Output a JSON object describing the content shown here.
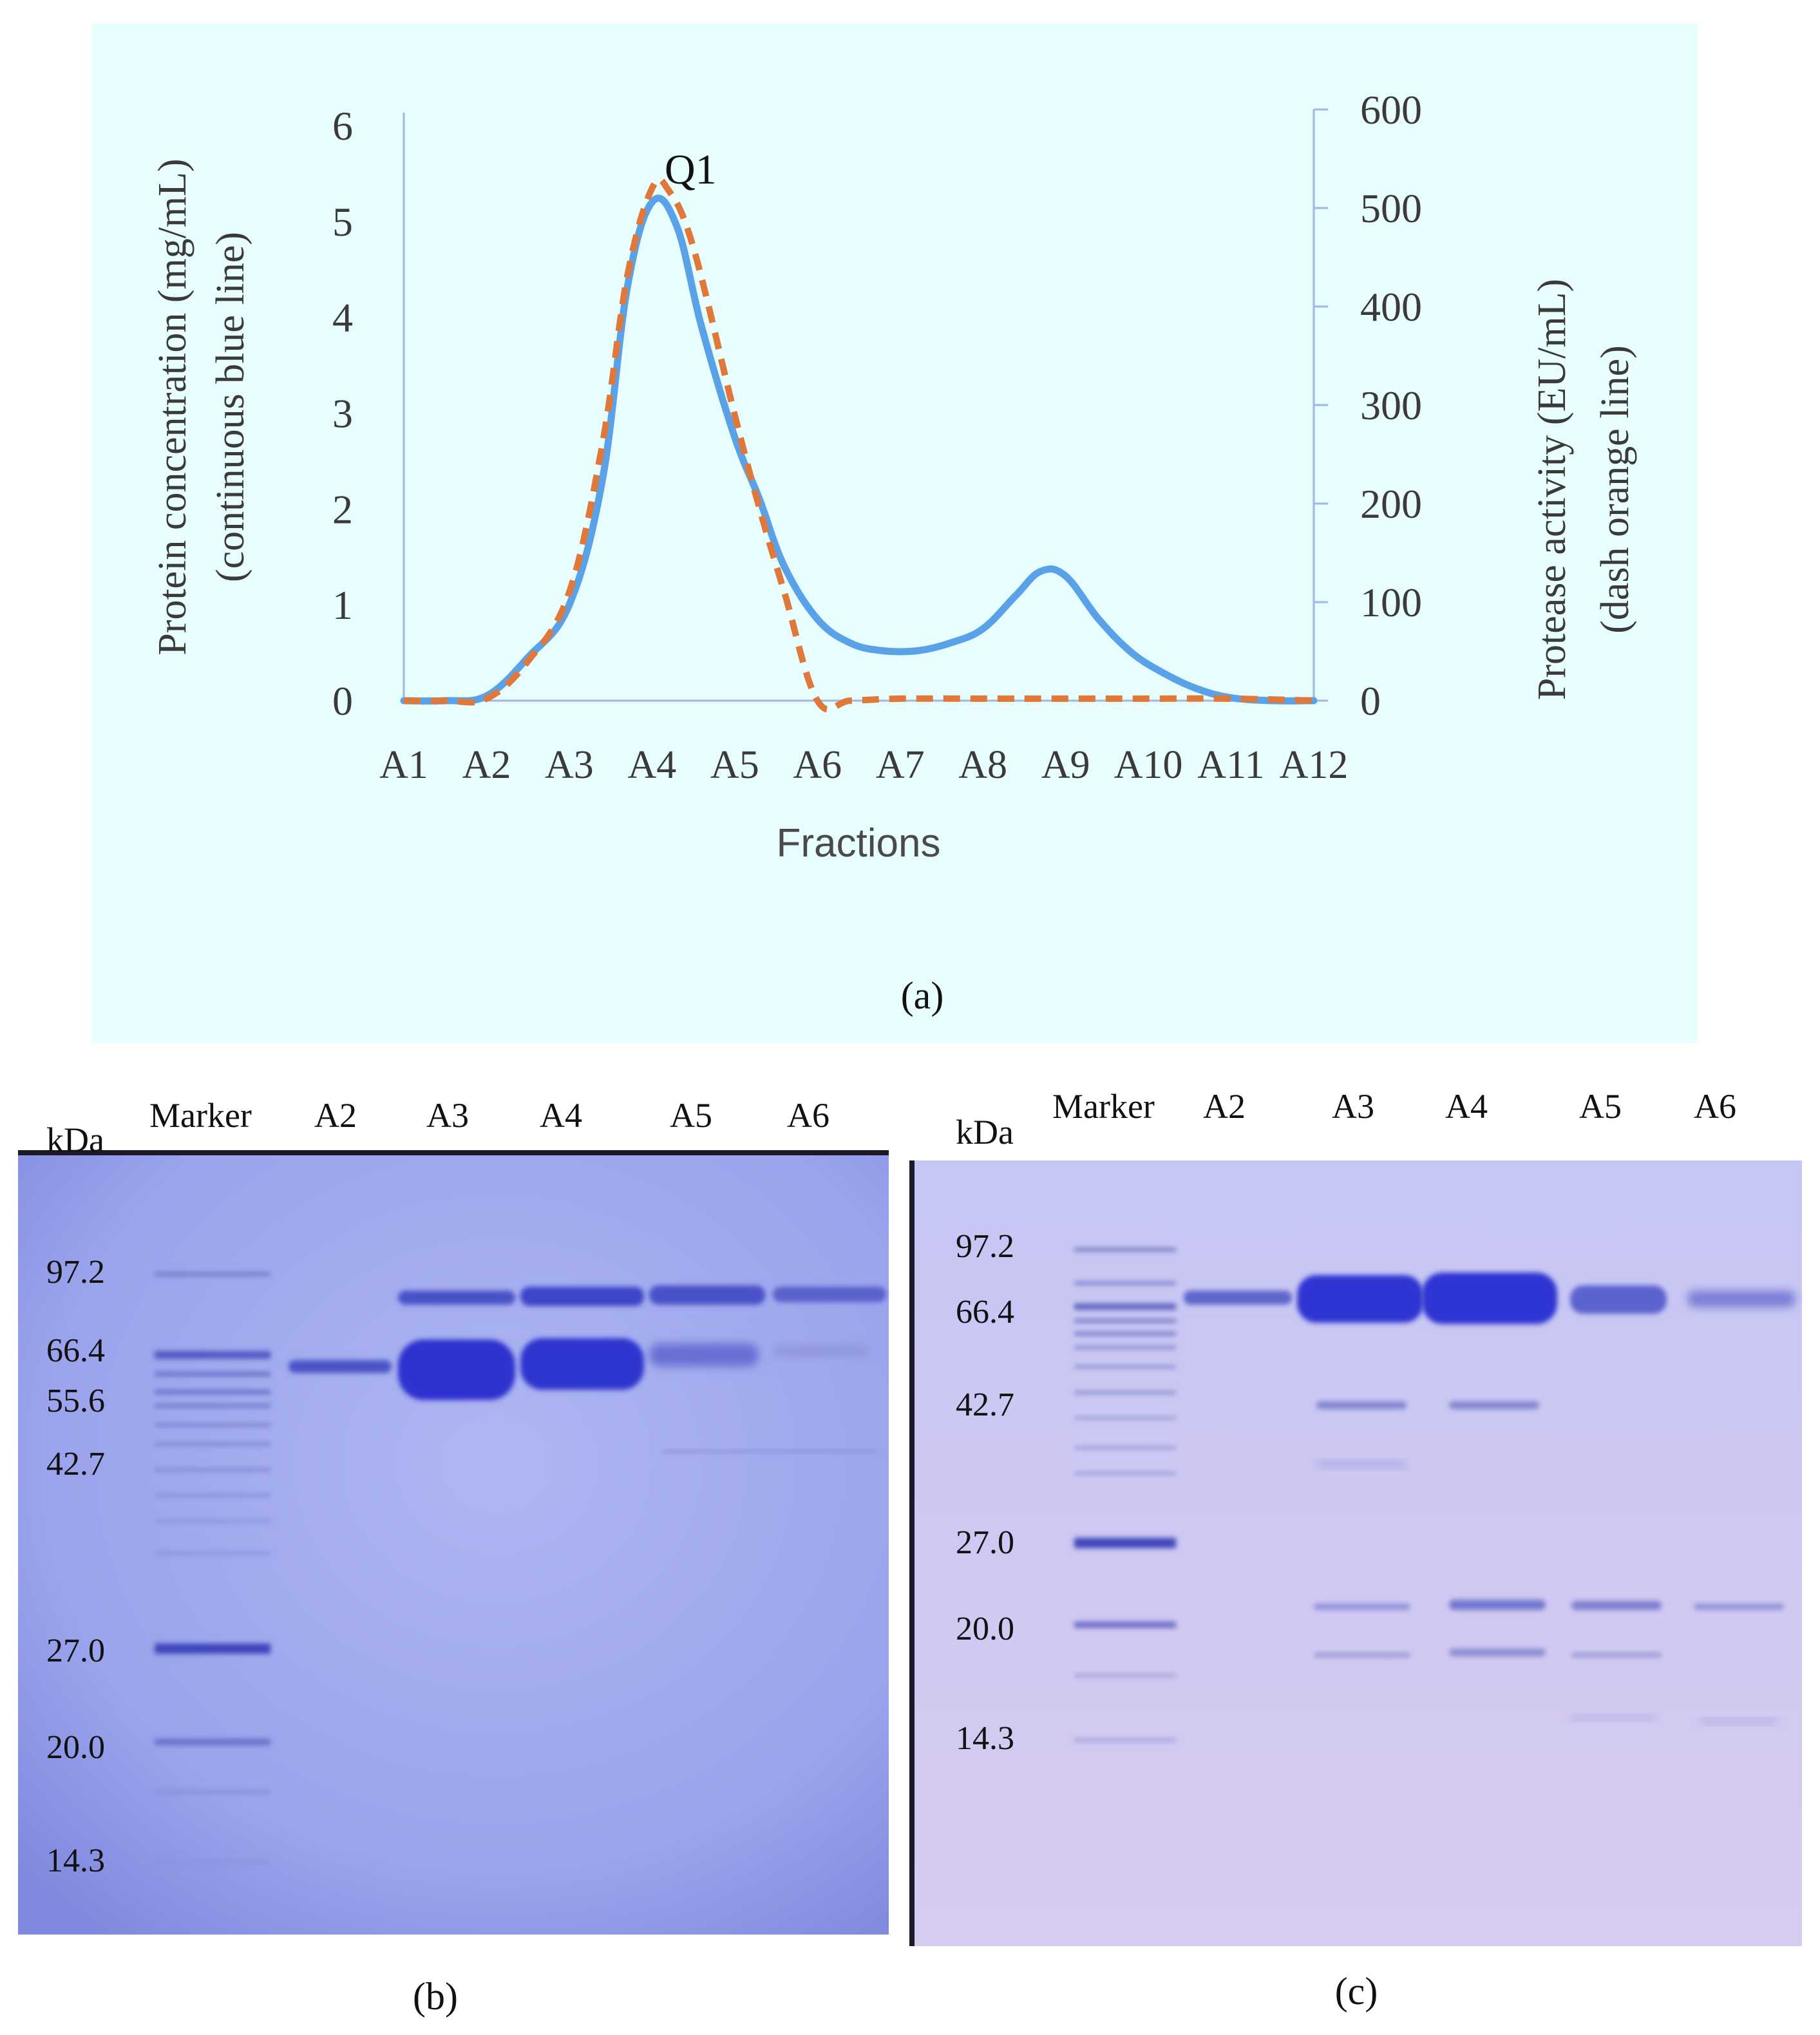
{
  "chart_data": [
    {
      "type": "line",
      "panel_label": "(a)",
      "annotation": "Q1",
      "categories": [
        "A1",
        "A2",
        "A3",
        "A4",
        "A5",
        "A6",
        "A7",
        "A8",
        "A9",
        "A10",
        "A11",
        "A12"
      ],
      "xlabel": "Fractions",
      "y_left": {
        "label_line1": "Protein concentration (mg/mL)",
        "label_line2": "(continuous blue line)",
        "ylim": [
          0,
          6
        ],
        "ticks": [
          "0",
          "1",
          "2",
          "3",
          "4",
          "5",
          "6"
        ]
      },
      "y_right": {
        "label_line1": "Protease activity (EU/mL)",
        "label_line2": "(dash orange line)",
        "ylim": [
          0,
          600
        ],
        "ticks": [
          "0",
          "100",
          "200",
          "300",
          "400",
          "500",
          "600"
        ]
      },
      "series": [
        {
          "name": "Protein concentration",
          "axis": "left",
          "style": "continuous",
          "color": "#5aa2e8",
          "x": [
            1,
            1.5,
            2,
            2.5,
            3,
            3.4,
            3.7,
            4,
            4.3,
            4.6,
            5,
            5.3,
            5.6,
            6,
            6.4,
            6.8,
            7.2,
            7.6,
            8,
            8.4,
            8.7,
            9,
            9.4,
            9.8,
            10.2,
            10.6,
            11,
            11.5,
            12
          ],
          "values": [
            0,
            0,
            0.05,
            0.45,
            1.0,
            2.3,
            4.3,
            5.2,
            4.95,
            3.9,
            2.75,
            2.1,
            1.4,
            0.85,
            0.6,
            0.52,
            0.52,
            0.6,
            0.75,
            1.1,
            1.35,
            1.3,
            0.85,
            0.5,
            0.28,
            0.12,
            0.03,
            0.0,
            0.0
          ]
        },
        {
          "name": "Protease activity",
          "axis": "right",
          "style": "dash",
          "color": "#e0783a",
          "x": [
            1,
            1.5,
            2,
            2.5,
            3,
            3.4,
            3.7,
            4,
            4.2,
            4.5,
            5,
            5.3,
            5.6,
            6,
            6.4,
            7,
            8,
            9,
            10,
            11,
            12
          ],
          "values": [
            0,
            0,
            2,
            40,
            110,
            260,
            430,
            520,
            518,
            460,
            290,
            195,
            110,
            0,
            0,
            2,
            2,
            2,
            2,
            2,
            0
          ]
        }
      ]
    },
    {
      "type": "gel",
      "panel_label": "(b)",
      "unit_label": "kDa",
      "lanes": [
        "Marker",
        "A2",
        "A3",
        "A4",
        "A5",
        "A6"
      ],
      "mw_labels": [
        "97.2",
        "66.4",
        "55.6",
        "42.7",
        "27.0",
        "20.0",
        "14.3"
      ]
    },
    {
      "type": "gel",
      "panel_label": "(c)",
      "unit_label": "kDa",
      "lanes": [
        "Marker",
        "A2",
        "A3",
        "A4",
        "A5",
        "A6"
      ],
      "mw_labels": [
        "97.2",
        "66.4",
        "42.7",
        "27.0",
        "20.0",
        "14.3"
      ]
    }
  ]
}
